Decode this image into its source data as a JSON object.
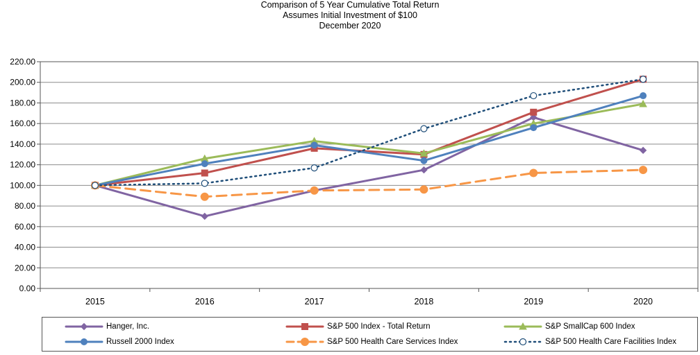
{
  "chart_data": {
    "type": "line",
    "title": [
      "Comparison of 5 Year Cumulative Total Return",
      "Assumes Initial Investment of $100",
      "December 2020"
    ],
    "xlabel": "",
    "ylabel": "",
    "categories": [
      "2015",
      "2016",
      "2017",
      "2018",
      "2019",
      "2020"
    ],
    "ylim": [
      0,
      220
    ],
    "yticks": [
      "0.00",
      "20.00",
      "40.00",
      "60.00",
      "80.00",
      "100.00",
      "120.00",
      "140.00",
      "160.00",
      "180.00",
      "200.00",
      "220.00"
    ],
    "grid": "horizontal",
    "legend": "bottom",
    "series": [
      {
        "name": "Hanger, Inc.",
        "values": [
          100,
          70,
          95,
          115,
          166,
          134
        ],
        "color": "#8064a2",
        "marker": "diamond",
        "dash": "solid"
      },
      {
        "name": "S&P 500 Index - Total Return",
        "values": [
          100,
          112,
          136,
          130,
          171,
          203
        ],
        "color": "#c0504d",
        "marker": "square",
        "dash": "solid"
      },
      {
        "name": "S&P SmallCap 600 Index",
        "values": [
          100,
          126,
          143,
          131,
          160,
          179
        ],
        "color": "#9bbb59",
        "marker": "triangle",
        "dash": "solid"
      },
      {
        "name": "Russell 2000 Index",
        "values": [
          100,
          121,
          139,
          124,
          156,
          187
        ],
        "color": "#4f81bd",
        "marker": "circle",
        "dash": "solid"
      },
      {
        "name": "S&P 500 Health Care Services Index",
        "values": [
          100,
          89,
          95,
          96,
          112,
          115
        ],
        "color": "#f79646",
        "marker": "circle-big",
        "dash": "dashed"
      },
      {
        "name": "S&P 500 Health Care Facilities Index",
        "values": [
          100,
          102,
          117,
          155,
          187,
          203
        ],
        "color": "#1f4e79",
        "marker": "circle-open",
        "dash": "dotted"
      }
    ]
  }
}
